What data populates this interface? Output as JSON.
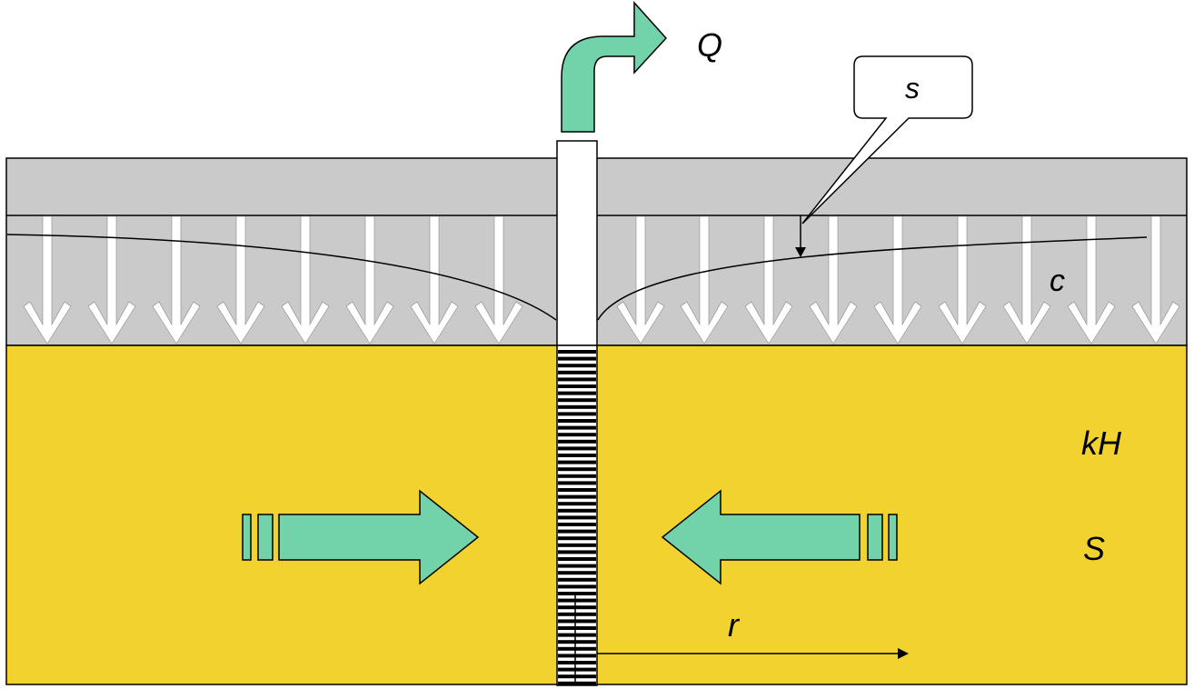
{
  "labels": {
    "discharge": "Q",
    "drawdown": "s",
    "resistance": "c",
    "transmissivity": "kH",
    "storage": "S",
    "radius": "r"
  },
  "colors": {
    "aquitard": "#cacaca",
    "aquifer": "#f2d22e",
    "flow_arrow": "#72d3ab",
    "leakage_arrow": "#ffffff",
    "outline": "#000000"
  }
}
